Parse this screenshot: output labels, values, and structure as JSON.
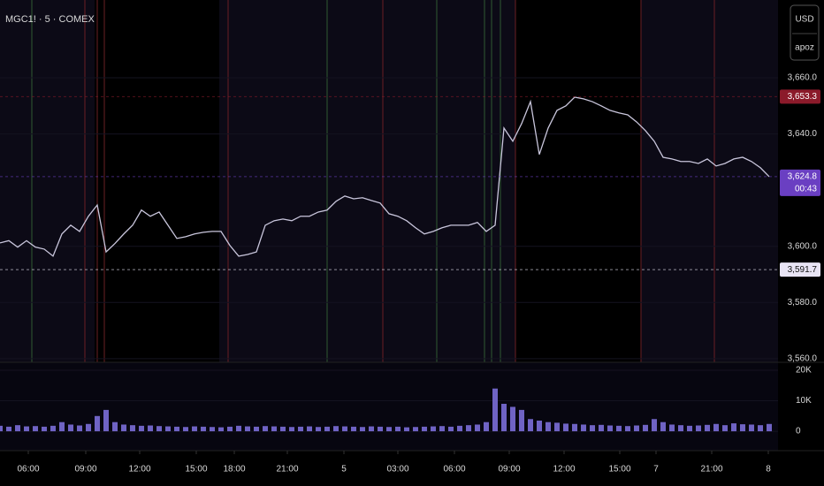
{
  "chart_data": {
    "type": "line",
    "title": "MGC1! · 5 · COMEX",
    "currency": "USD",
    "scale_mode": "apoz",
    "x": [
      0,
      1,
      2,
      3,
      4,
      5,
      6,
      7,
      8,
      9,
      10,
      11,
      12,
      13,
      14,
      15,
      16,
      17,
      18,
      19,
      20,
      21,
      22,
      23,
      24,
      25,
      26,
      27,
      28,
      29,
      30,
      31,
      32,
      33,
      34,
      35,
      36,
      37,
      38,
      39,
      40,
      41,
      42,
      43,
      44,
      45,
      46,
      47,
      48,
      49,
      50,
      51,
      52,
      53,
      54,
      55,
      56,
      57,
      58,
      59,
      60,
      61,
      62,
      63,
      64,
      65,
      66,
      67,
      68,
      69,
      70,
      71,
      72,
      73,
      74,
      75,
      76,
      77,
      78,
      79,
      80,
      81,
      82,
      83,
      84,
      85,
      86,
      87
    ],
    "xlim": [
      0,
      88
    ],
    "xticks": [
      {
        "value": 3.2,
        "label": "06:00"
      },
      {
        "value": 9.7,
        "label": "09:00"
      },
      {
        "value": 15.8,
        "label": "12:00"
      },
      {
        "value": 22.2,
        "label": "15:00"
      },
      {
        "value": 26.5,
        "label": "18:00"
      },
      {
        "value": 32.5,
        "label": "21:00"
      },
      {
        "value": 38.9,
        "label": "5"
      },
      {
        "value": 45,
        "label": "03:00"
      },
      {
        "value": 51.4,
        "label": "06:00"
      },
      {
        "value": 57.6,
        "label": "09:00"
      },
      {
        "value": 63.8,
        "label": "12:00"
      },
      {
        "value": 70.1,
        "label": "15:00"
      },
      {
        "value": 74.2,
        "label": "7"
      },
      {
        "value": 80.5,
        "label": "21:00"
      },
      {
        "value": 86.9,
        "label": "8"
      }
    ],
    "ylim": [
      3558.7,
      3687.7
    ],
    "yticks": [
      {
        "value": 3660,
        "label": "3,660.0"
      },
      {
        "value": 3640,
        "label": "3,640.0"
      },
      {
        "value": 3600,
        "label": "3,600.0"
      },
      {
        "value": 3580,
        "label": "3,580.0"
      },
      {
        "value": 3560,
        "label": "3,560.0"
      }
    ],
    "y2lim": [
      -4900,
      22600
    ],
    "y2ticks": [
      {
        "value": 20000,
        "label": "20K"
      },
      {
        "value": 10000,
        "label": "10K"
      },
      0
    ],
    "grid": true,
    "series": [
      {
        "name": "Price",
        "color": "#c9c6dc",
        "values": [
          3601.2,
          3602,
          3599.7,
          3602,
          3599.7,
          3599,
          3596.5,
          3604.4,
          3607.5,
          3605.3,
          3610.7,
          3614.7,
          3598,
          3601,
          3604.4,
          3607.5,
          3612.9,
          3610.7,
          3612.2,
          3607.5,
          3602.8,
          3603.4,
          3604.4,
          3605,
          3605.3,
          3605.3,
          3600.3,
          3596.5,
          3597.1,
          3598,
          3607.5,
          3609.1,
          3609.7,
          3609.1,
          3610.7,
          3610.7,
          3612.2,
          3612.9,
          3616,
          3617.9,
          3616.9,
          3617.3,
          3616.3,
          3615.4,
          3611.6,
          3610.7,
          3609.1,
          3606.6,
          3604.4,
          3605.3,
          3606.6,
          3607.5,
          3607.5,
          3607.5,
          3608.5,
          3605.3,
          3607.5,
          3642.1,
          3637.4,
          3643.7,
          3651.5,
          3632.7,
          3642.1,
          3648.4,
          3650,
          3653.1,
          3652.5,
          3651.5,
          3650,
          3648.4,
          3647.5,
          3646.8,
          3644.3,
          3641.2,
          3637.4,
          3631.7,
          3631.1,
          3630.2,
          3630.2,
          3629.5,
          3631.1,
          3628.6,
          3629.5,
          3631.1,
          3631.7,
          3630.2,
          3628,
          3624.8
        ]
      },
      {
        "name": "Volume",
        "color": "#6f63c4",
        "axis": "y2",
        "values": [
          1800,
          1500,
          2000,
          1600,
          1700,
          1500,
          1800,
          3000,
          2200,
          1900,
          2400,
          5000,
          7000,
          3000,
          2200,
          2000,
          1800,
          1900,
          1700,
          1600,
          1500,
          1400,
          1600,
          1500,
          1400,
          1300,
          1500,
          1800,
          1600,
          1500,
          1700,
          1600,
          1500,
          1400,
          1500,
          1600,
          1400,
          1500,
          1700,
          1600,
          1500,
          1400,
          1600,
          1500,
          1400,
          1500,
          1300,
          1400,
          1500,
          1600,
          1700,
          1500,
          1800,
          2000,
          2200,
          3000,
          14000,
          9000,
          8000,
          7000,
          4000,
          3500,
          3000,
          2800,
          2500,
          2400,
          2200,
          2000,
          2100,
          1900,
          1800,
          1700,
          1900,
          2100,
          4000,
          3000,
          2200,
          2000,
          1800,
          1900,
          2100,
          2400,
          2000,
          2600,
          2300,
          2200,
          2000,
          2400
        ]
      }
    ],
    "price_lines": [
      {
        "value": 3653.3,
        "label": "3,653.3",
        "color": "#8b1a2a"
      },
      {
        "value": 3624.8,
        "label": "3,624.8",
        "color": "#6a3fc2",
        "countdown": "00:43"
      },
      {
        "value": 3591.7,
        "label": "3,591.7",
        "color": "#e8e4f4"
      }
    ]
  }
}
